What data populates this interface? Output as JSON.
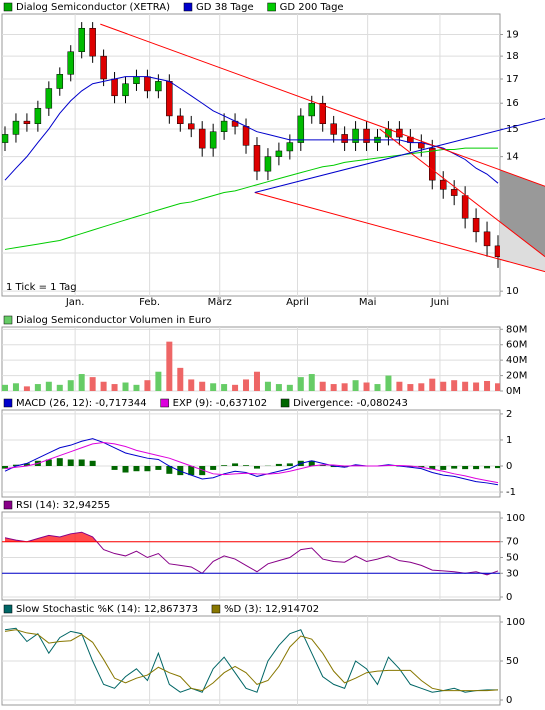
{
  "chart_data": [
    {
      "type": "candlestick",
      "log": true,
      "grid": true,
      "note": "1 Tick = 1 Tag",
      "xlim": [
        0,
        45
      ],
      "xticks": [
        {
          "value": 6.4,
          "label": "Jan."
        },
        {
          "value": 13.2,
          "label": "Feb."
        },
        {
          "value": 19.6,
          "label": "März"
        },
        {
          "value": 26.7,
          "label": "April"
        },
        {
          "value": 33.1,
          "label": "Mai"
        },
        {
          "value": 39.7,
          "label": "Juni"
        }
      ],
      "ylim": [
        9.88,
        20.0
      ],
      "yticks": [
        10,
        11,
        12,
        13,
        14,
        15,
        16,
        17,
        18,
        19
      ],
      "up_color": "#00bb00",
      "down_color": "#dd0000",
      "series": [
        {
          "name": "Dialog Semiconductor (XETRA)",
          "kind": "candle",
          "color": "#00aa00",
          "open": [
            14.5,
            14.8,
            15.3,
            15.2,
            15.8,
            16.6,
            17.2,
            18.2,
            19.3,
            18.0,
            17.0,
            16.3,
            16.8,
            17.1,
            16.5,
            16.9,
            15.5,
            15.2,
            15.0,
            14.3,
            14.9,
            15.3,
            15.1,
            14.4,
            13.5,
            14.0,
            14.2,
            14.5,
            15.5,
            16.0,
            15.2,
            14.8,
            14.5,
            15.0,
            14.5,
            14.7,
            15.0,
            14.7,
            14.5,
            14.3,
            13.2,
            12.9,
            12.7,
            12.0,
            11.6,
            11.2
          ],
          "high": [
            15.1,
            15.6,
            15.6,
            16.1,
            16.9,
            17.5,
            18.5,
            19.6,
            19.6,
            18.3,
            17.3,
            17.1,
            17.4,
            17.4,
            17.2,
            17.2,
            15.8,
            15.5,
            15.3,
            15.2,
            15.6,
            15.6,
            15.4,
            14.7,
            14.3,
            14.5,
            14.8,
            15.8,
            16.3,
            16.3,
            15.5,
            15.1,
            15.3,
            15.3,
            15.0,
            15.3,
            15.3,
            15.0,
            14.8,
            14.6,
            13.5,
            13.2,
            13.0,
            12.3,
            11.9,
            11.5
          ],
          "low": [
            14.2,
            14.5,
            14.9,
            14.9,
            15.5,
            16.3,
            16.9,
            17.9,
            17.7,
            16.7,
            16.0,
            16.0,
            16.5,
            16.2,
            16.2,
            15.2,
            14.9,
            14.7,
            14.0,
            14.0,
            14.6,
            14.8,
            14.1,
            13.2,
            13.2,
            13.7,
            13.9,
            14.2,
            15.2,
            14.9,
            14.5,
            14.2,
            14.2,
            14.2,
            14.2,
            14.4,
            14.4,
            14.2,
            14.0,
            12.9,
            12.6,
            12.4,
            11.7,
            11.3,
            10.9,
            10.6
          ],
          "values": [
            14.8,
            15.3,
            15.2,
            15.8,
            16.6,
            17.2,
            18.2,
            19.3,
            18.0,
            17.0,
            16.3,
            16.8,
            17.1,
            16.5,
            16.9,
            15.5,
            15.2,
            15.0,
            14.3,
            14.9,
            15.3,
            15.1,
            14.4,
            13.5,
            14.0,
            14.2,
            14.5,
            15.5,
            16.0,
            15.2,
            14.8,
            14.5,
            15.0,
            14.5,
            14.7,
            15.0,
            14.7,
            14.5,
            14.3,
            13.2,
            12.9,
            12.7,
            12.0,
            11.6,
            11.2,
            10.9
          ]
        },
        {
          "name": "GD 38 Tage",
          "kind": "line",
          "color": "#0000cc",
          "values": [
            13.2,
            13.6,
            14.0,
            14.5,
            15.0,
            15.6,
            16.1,
            16.5,
            16.8,
            16.9,
            17.0,
            17.1,
            17.1,
            17.1,
            17.0,
            16.9,
            16.6,
            16.3,
            16.0,
            15.7,
            15.5,
            15.3,
            15.1,
            14.9,
            14.8,
            14.7,
            14.6,
            14.6,
            14.6,
            14.6,
            14.6,
            14.6,
            14.6,
            14.6,
            14.6,
            14.6,
            14.6,
            14.5,
            14.5,
            14.4,
            14.3,
            14.1,
            13.9,
            13.6,
            13.4,
            13.1
          ]
        },
        {
          "name": "GD 200 Tage",
          "kind": "line",
          "color": "#00cc00",
          "values": [
            11.1,
            11.15,
            11.2,
            11.25,
            11.3,
            11.35,
            11.45,
            11.55,
            11.65,
            11.75,
            11.85,
            11.95,
            12.05,
            12.15,
            12.25,
            12.35,
            12.45,
            12.5,
            12.6,
            12.7,
            12.8,
            12.85,
            12.95,
            13.05,
            13.15,
            13.25,
            13.35,
            13.45,
            13.55,
            13.65,
            13.7,
            13.8,
            13.85,
            13.9,
            13.95,
            14.0,
            14.05,
            14.1,
            14.15,
            14.2,
            14.25,
            14.25,
            14.3,
            14.3,
            14.3,
            14.3
          ]
        }
      ],
      "trendlines": [
        {
          "color": "#ff0000",
          "x": [
            8.7,
            49.3
          ],
          "y": [
            19.5,
            13.0
          ]
        },
        {
          "color": "#ff0000",
          "x": [
            22.8,
            49.3
          ],
          "y": [
            12.8,
            10.5
          ]
        },
        {
          "color": "#ff0000",
          "x": [
            34.2,
            49.3
          ],
          "y": [
            15.0,
            10.9
          ]
        },
        {
          "color": "#0000cc",
          "x": [
            22.8,
            49.3
          ],
          "y": [
            12.8,
            15.4
          ]
        }
      ],
      "projection_fill": [
        "#999999",
        "#dddddd"
      ]
    },
    {
      "type": "bar",
      "grid": true,
      "ylim": [
        0,
        83
      ],
      "yticks": [
        {
          "value": 0,
          "label": "0M"
        },
        {
          "value": 20,
          "label": "20M"
        },
        {
          "value": 40,
          "label": "40M"
        },
        {
          "value": 60,
          "label": "60M"
        },
        {
          "value": 80,
          "label": "80M"
        }
      ],
      "series": [
        {
          "name": "Dialog Semiconductor Volumen in Euro",
          "kind": "volume",
          "color": "#66cc66",
          "up_color": "#66cc66",
          "down_color": "#ee6666",
          "values": [
            8,
            10,
            6,
            9,
            12,
            8,
            14,
            22,
            18,
            12,
            9,
            11,
            8,
            14,
            25,
            64,
            30,
            15,
            12,
            10,
            9,
            8,
            15,
            25,
            12,
            9,
            8,
            18,
            22,
            12,
            9,
            10,
            14,
            11,
            9,
            20,
            12,
            9,
            10,
            16,
            12,
            14,
            12,
            11,
            13,
            10
          ]
        }
      ]
    },
    {
      "type": "line",
      "grid": true,
      "ylim": [
        -1.19,
        2.15
      ],
      "yticks": [
        -1,
        0,
        1,
        2
      ],
      "series": [
        {
          "name": "MACD (26, 12): -0,717344",
          "kind": "line",
          "color": "#0000cc",
          "values": [
            -0.2,
            0.0,
            0.1,
            0.3,
            0.5,
            0.7,
            0.8,
            0.95,
            1.05,
            0.9,
            0.7,
            0.5,
            0.4,
            0.3,
            0.25,
            0.0,
            -0.2,
            -0.35,
            -0.5,
            -0.45,
            -0.3,
            -0.2,
            -0.25,
            -0.4,
            -0.3,
            -0.2,
            -0.1,
            0.1,
            0.2,
            0.1,
            0.0,
            -0.05,
            0.05,
            0.0,
            0.0,
            0.05,
            0.0,
            -0.05,
            -0.1,
            -0.25,
            -0.35,
            -0.4,
            -0.5,
            -0.6,
            -0.65,
            -0.72
          ]
        },
        {
          "name": "EXP (9): -0,637102",
          "kind": "line",
          "color": "#dd00dd",
          "values": [
            -0.1,
            -0.05,
            0.0,
            0.1,
            0.25,
            0.4,
            0.55,
            0.7,
            0.85,
            0.9,
            0.85,
            0.75,
            0.6,
            0.5,
            0.4,
            0.3,
            0.15,
            0.0,
            -0.15,
            -0.3,
            -0.33,
            -0.3,
            -0.28,
            -0.3,
            -0.31,
            -0.28,
            -0.2,
            -0.1,
            0.0,
            0.05,
            0.04,
            0.0,
            0.01,
            0.0,
            0.0,
            0.02,
            0.02,
            0.0,
            -0.05,
            -0.12,
            -0.2,
            -0.3,
            -0.38,
            -0.48,
            -0.56,
            -0.64
          ]
        },
        {
          "name": "Divergence: -0,080243",
          "kind": "bar",
          "color": "#006600",
          "values": [
            -0.1,
            0.05,
            0.1,
            0.2,
            0.25,
            0.3,
            0.25,
            0.25,
            0.2,
            0.0,
            -0.15,
            -0.25,
            -0.2,
            -0.2,
            -0.15,
            -0.3,
            -0.35,
            -0.35,
            -0.35,
            -0.15,
            0.03,
            0.1,
            0.03,
            -0.1,
            0.01,
            0.08,
            0.1,
            0.2,
            0.2,
            0.05,
            -0.04,
            -0.05,
            0.04,
            0.0,
            0.0,
            0.03,
            -0.02,
            -0.05,
            -0.05,
            -0.13,
            -0.15,
            -0.1,
            -0.12,
            -0.12,
            -0.09,
            -0.08
          ]
        }
      ]
    },
    {
      "type": "line",
      "grid": true,
      "ylim": [
        -3.8,
        107.6
      ],
      "yticks": [
        0,
        30,
        50,
        70,
        100
      ],
      "hlines": [
        {
          "value": 70,
          "color": "#ff0000",
          "side": "above"
        },
        {
          "value": 30,
          "color": "#0000cc",
          "side": "below"
        }
      ],
      "series": [
        {
          "name": "RSI (14): 32,94255",
          "kind": "line",
          "color": "#880088",
          "values": [
            75,
            72,
            70,
            74,
            78,
            76,
            80,
            82,
            76,
            60,
            55,
            52,
            58,
            50,
            55,
            42,
            40,
            38,
            30,
            45,
            52,
            48,
            40,
            32,
            42,
            46,
            50,
            60,
            62,
            48,
            45,
            44,
            52,
            45,
            48,
            52,
            46,
            44,
            40,
            34,
            33,
            32,
            30,
            32,
            28,
            33
          ]
        }
      ]
    },
    {
      "type": "line",
      "grid": true,
      "ylim": [
        -6.4,
        107.7
      ],
      "yticks": [
        0,
        50,
        100
      ],
      "series": [
        {
          "name": "Slow Stochastic %K (14): 12,867373",
          "kind": "line",
          "color": "#006666",
          "values": [
            90,
            92,
            75,
            85,
            60,
            80,
            88,
            85,
            50,
            20,
            15,
            30,
            40,
            25,
            60,
            20,
            10,
            15,
            10,
            40,
            55,
            35,
            15,
            10,
            50,
            70,
            85,
            90,
            60,
            30,
            20,
            15,
            50,
            40,
            20,
            55,
            40,
            20,
            15,
            10,
            12,
            15,
            10,
            12,
            13,
            13
          ]
        },
        {
          "name": "%D (3): 12,914702",
          "kind": "line",
          "color": "#887700",
          "values": [
            88,
            90,
            86,
            84,
            73,
            75,
            76,
            84,
            74,
            52,
            28,
            22,
            28,
            32,
            42,
            35,
            30,
            15,
            12,
            22,
            35,
            43,
            35,
            20,
            25,
            43,
            68,
            82,
            78,
            60,
            37,
            22,
            28,
            35,
            37,
            38,
            38,
            38,
            25,
            15,
            12,
            12,
            12,
            12,
            12,
            13
          ]
        }
      ]
    }
  ]
}
